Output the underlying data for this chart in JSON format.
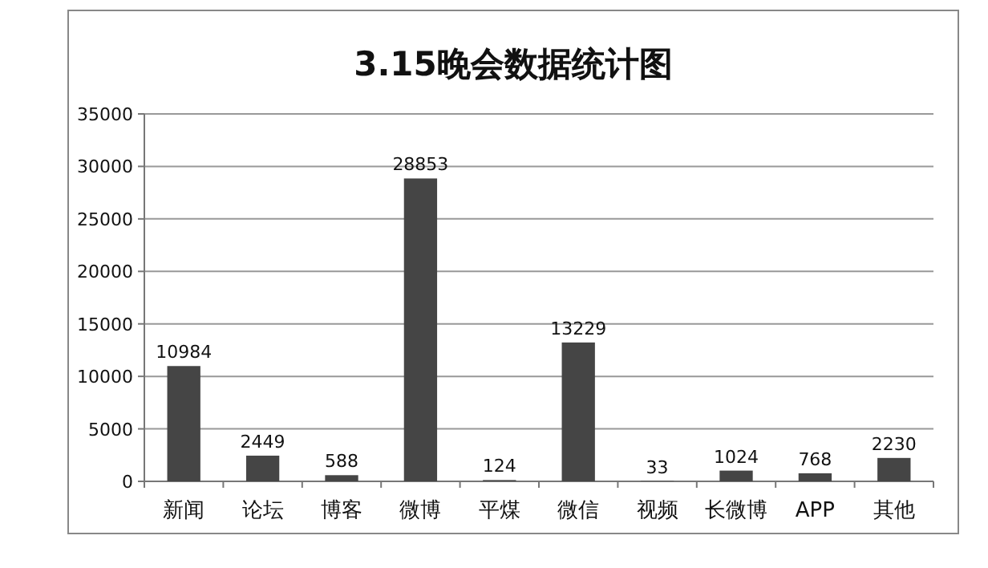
{
  "chart_data": {
    "type": "bar",
    "title": "3.15晚会数据统计图",
    "categories": [
      "新闻",
      "论坛",
      "博客",
      "微博",
      "平煤",
      "微信",
      "视频",
      "长微博",
      "APP",
      "其他"
    ],
    "values": [
      10984,
      2449,
      588,
      28853,
      124,
      13229,
      33,
      1024,
      768,
      2230
    ],
    "color": "#454545",
    "ylim": [
      0,
      35000
    ],
    "yticks": [
      0,
      5000,
      10000,
      15000,
      20000,
      25000,
      30000,
      35000
    ],
    "grid": "y",
    "data_labels": true
  }
}
